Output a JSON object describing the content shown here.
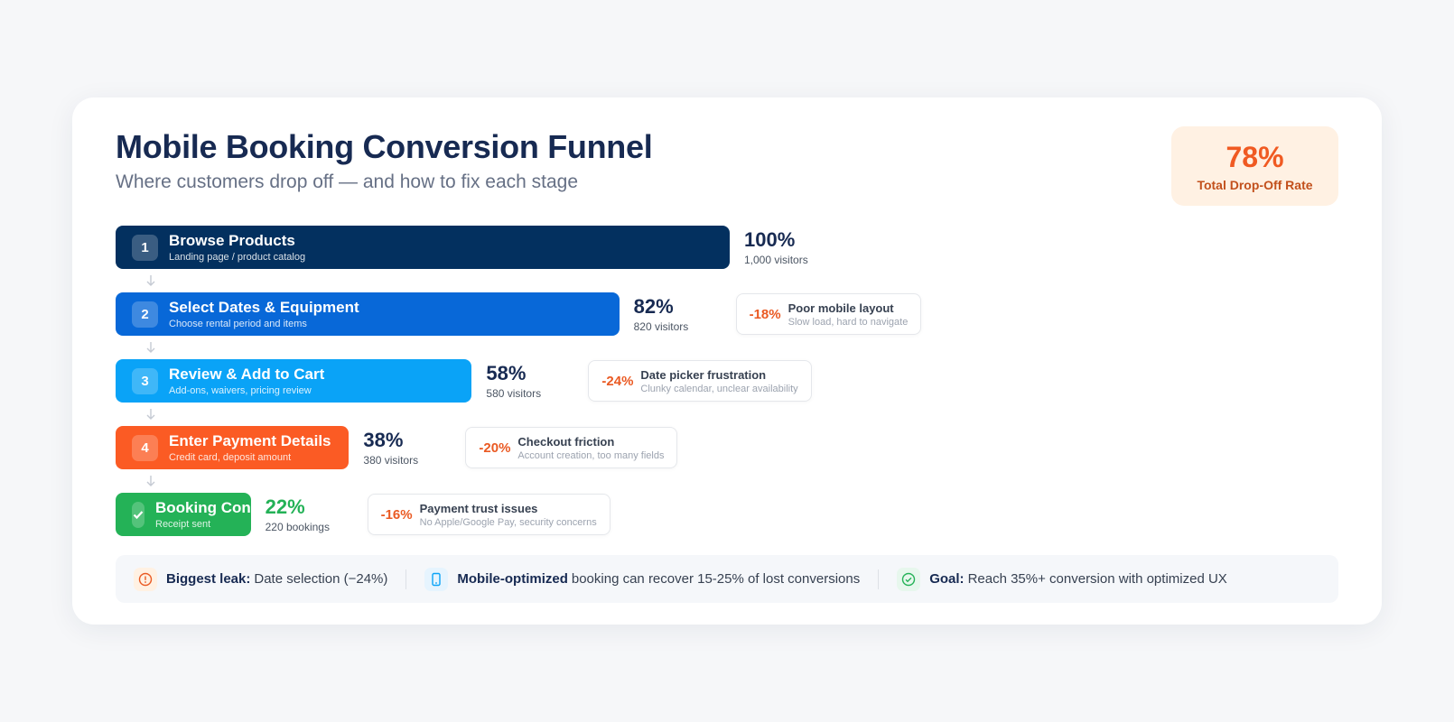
{
  "chart_data": {
    "type": "funnel",
    "title": "Mobile Booking Conversion Funnel",
    "subtitle": "Where customers drop off — and how to fix each stage",
    "kpi": {
      "value_label": "78%",
      "caption": "Total Drop-Off Rate"
    },
    "categories": [
      "Browse Products",
      "Select Dates & Equipment",
      "Review & Add to Cart",
      "Enter Payment Details",
      "Booking Confirmed"
    ],
    "descriptions": [
      "Landing page / product catalog",
      "Choose rental period and items",
      "Add-ons, waivers, pricing review",
      "Credit card, deposit amount",
      "Receipt sent"
    ],
    "step_labels": [
      "1",
      "2",
      "3",
      "4",
      null
    ],
    "values": [
      100,
      82,
      58,
      38,
      22
    ],
    "value_labels": [
      "100%",
      "82%",
      "58%",
      "38%",
      "22%"
    ],
    "count_labels": [
      "1,000 visitors",
      "820 visitors",
      "580 visitors",
      "380 visitors",
      "220 bookings"
    ],
    "colors": [
      "#03305f",
      "#0868d8",
      "#0aa3f7",
      "#fb5b24",
      "#24b257"
    ],
    "drop_offs": [
      {
        "label": "-18%",
        "title": "Poor mobile layout",
        "detail": "Slow load, hard to navigate"
      },
      {
        "label": "-24%",
        "title": "Date picker frustration",
        "detail": "Clunky calendar, unclear availability"
      },
      {
        "label": "-20%",
        "title": "Checkout friction",
        "detail": "Account creation, too many fields"
      },
      {
        "label": "-16%",
        "title": "Payment trust issues",
        "detail": "No Apple/Google Pay, security concerns"
      }
    ],
    "insights": [
      {
        "bold": "Biggest leak:",
        "text": "Date selection (−24%)"
      },
      {
        "bold": "Mobile-optimized",
        "text": "booking can recover 15-25% of lost conversions"
      },
      {
        "bold": "Goal:",
        "text": "Reach 35%+ conversion with optimized UX"
      }
    ]
  }
}
